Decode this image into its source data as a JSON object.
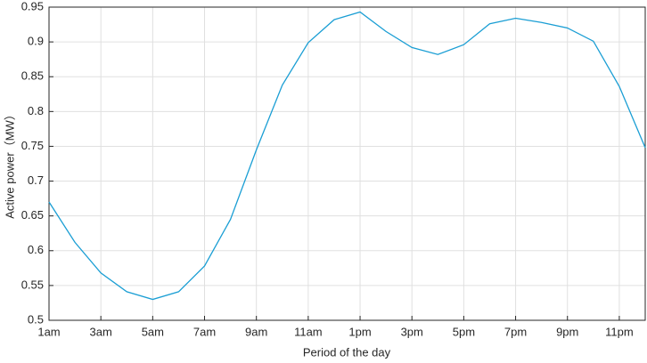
{
  "chart_data": {
    "type": "line",
    "xlabel": "Period of the day",
    "ylabel": "Active power（MW）",
    "categories": [
      "1am",
      null,
      "3am",
      null,
      "5am",
      null,
      "7am",
      null,
      "9am",
      null,
      "11am",
      null,
      "1pm",
      null,
      "3pm",
      null,
      "5pm",
      null,
      "7pm",
      null,
      "9pm",
      null,
      "11pm",
      null
    ],
    "series": [
      {
        "name": "Active power",
        "color": "#1a9ed4",
        "values": [
          0.67,
          0.612,
          0.568,
          0.541,
          0.53,
          0.541,
          0.578,
          0.645,
          0.745,
          0.838,
          0.899,
          0.932,
          0.943,
          0.915,
          0.892,
          0.882,
          0.896,
          0.926,
          0.934,
          0.928,
          0.92,
          0.901,
          0.836,
          0.748
        ]
      }
    ],
    "ylim": [
      0.5,
      0.95
    ],
    "yticks": [
      0.5,
      0.55,
      0.6,
      0.65,
      0.7,
      0.75,
      0.8,
      0.85,
      0.9,
      0.95
    ],
    "grid": true
  }
}
